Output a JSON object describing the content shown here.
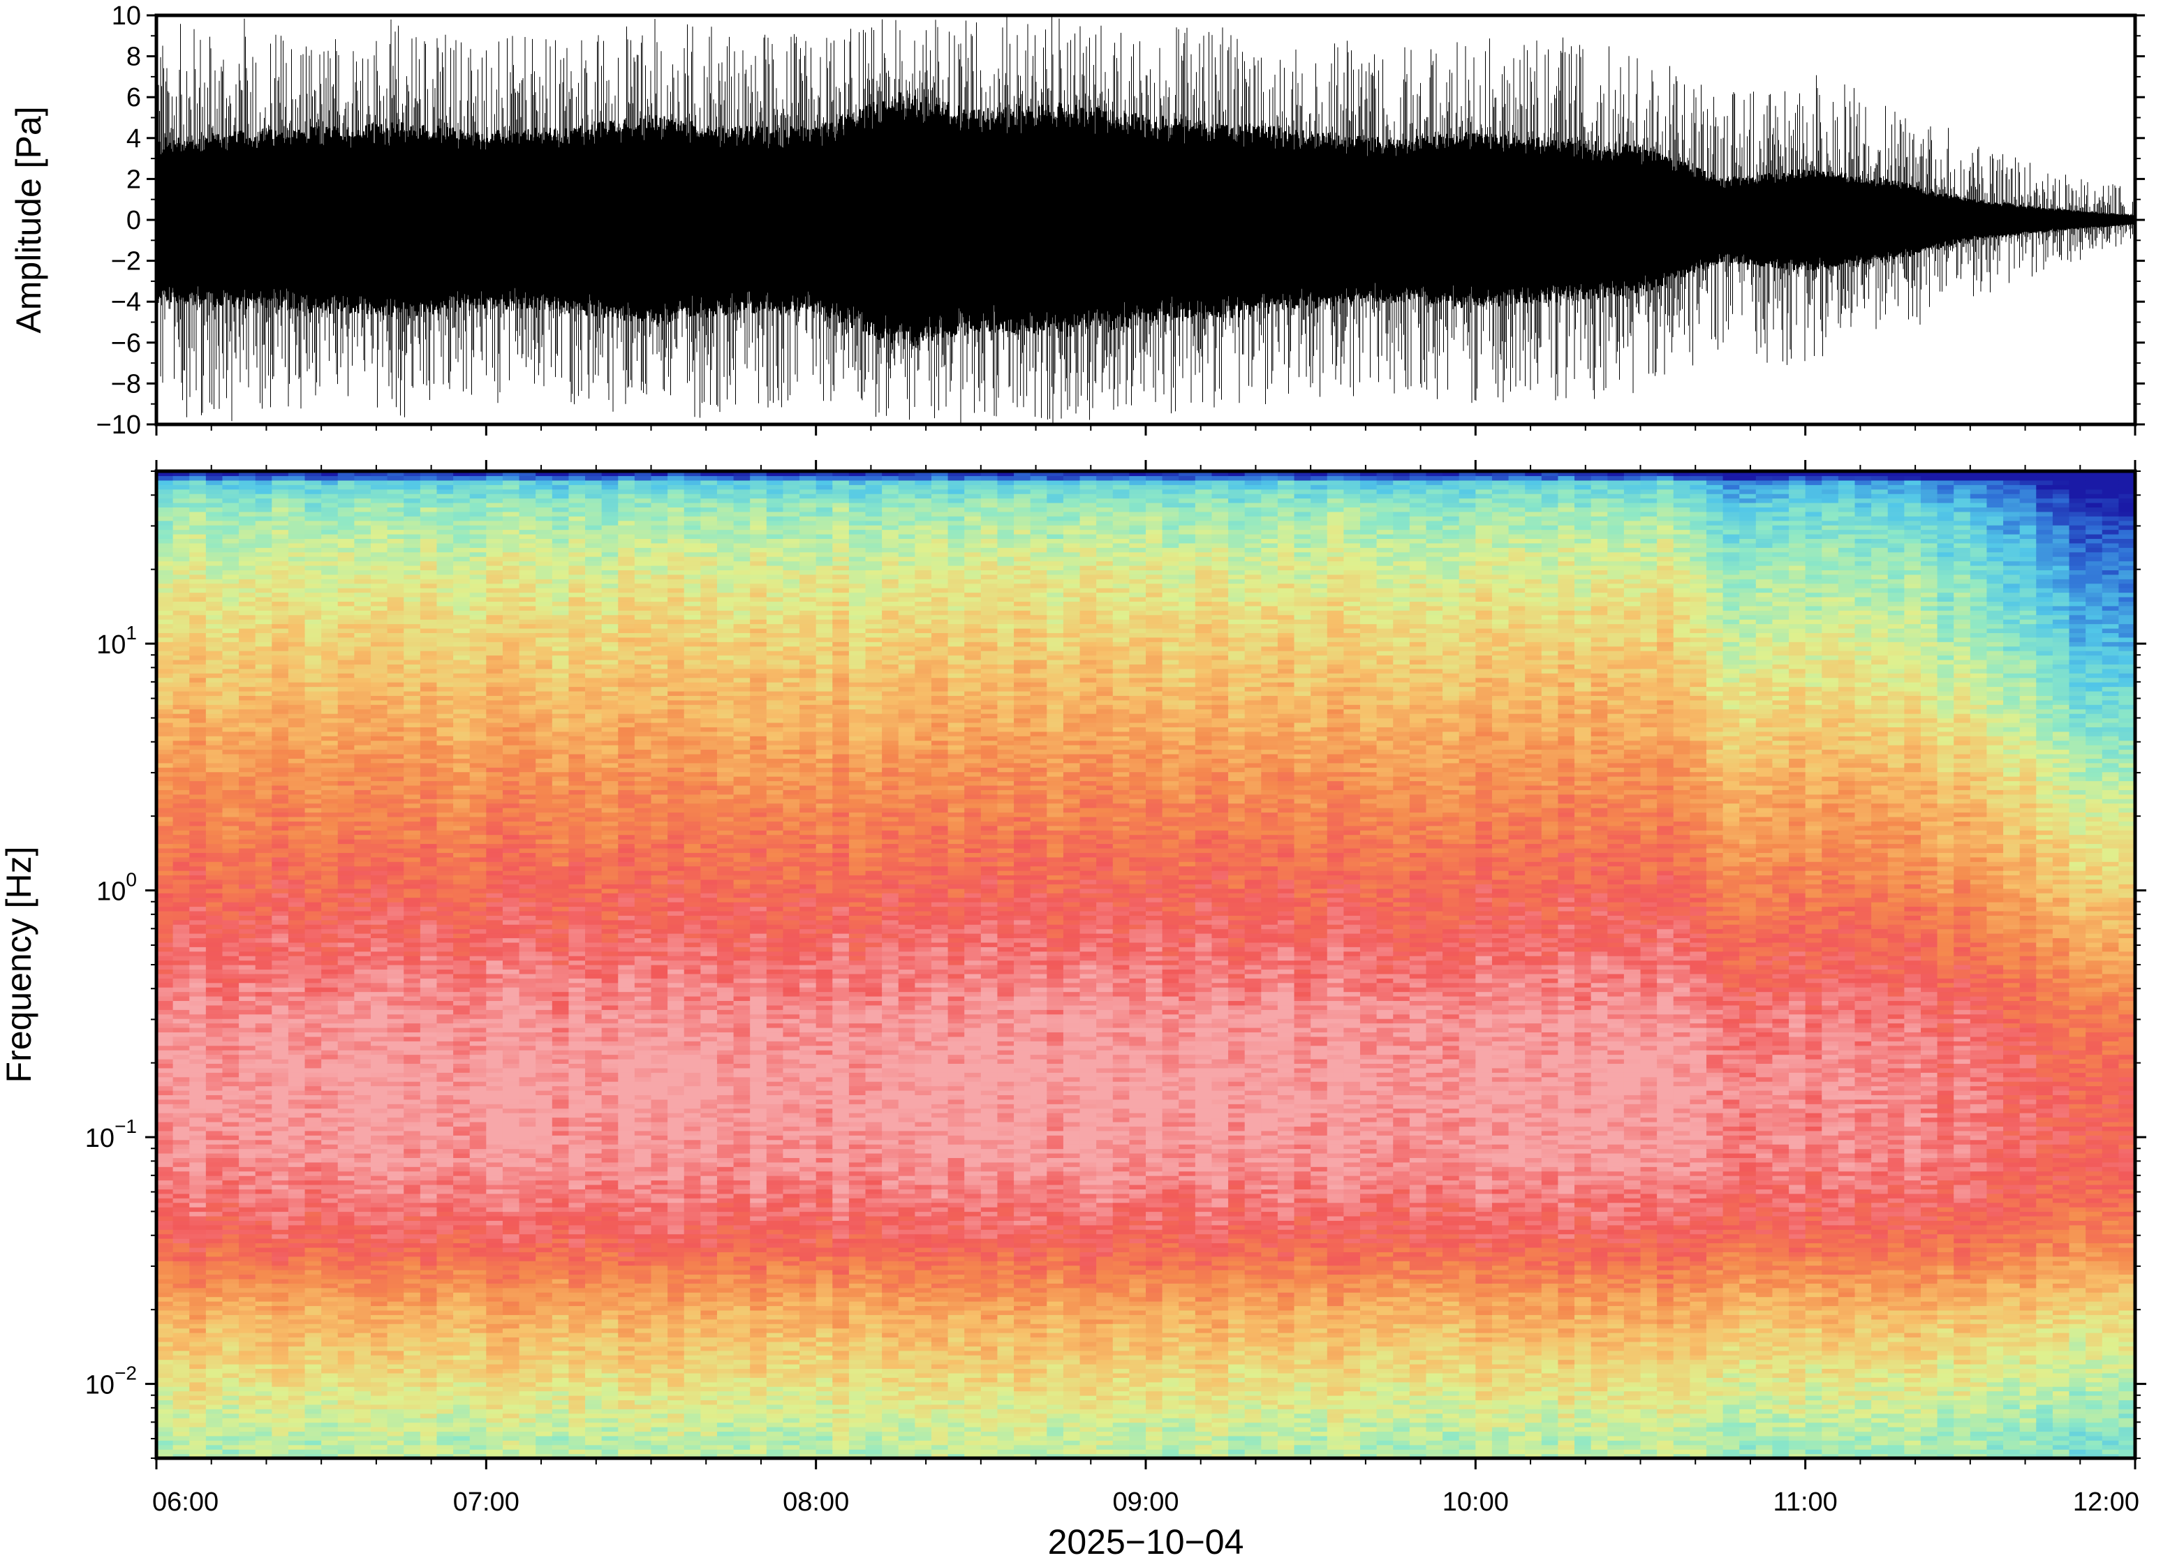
{
  "chart_data": [
    {
      "type": "line",
      "panel": "waveform",
      "ylabel": "Amplitude [Pa]",
      "ylim": [
        -10,
        10
      ],
      "yticks": [
        -10,
        -8,
        -6,
        -4,
        -2,
        0,
        2,
        4,
        6,
        8,
        10
      ],
      "ytick_labels": [
        "−10",
        "−8",
        "−6",
        "−4",
        "−2",
        "0",
        "2",
        "4",
        "6",
        "8",
        "10"
      ],
      "xlim": [
        "06:00",
        "12:00"
      ],
      "color": "#000000",
      "envelope": {
        "time_h": [
          6.0,
          6.25,
          6.5,
          6.75,
          7.0,
          7.25,
          7.5,
          7.75,
          8.0,
          8.25,
          8.5,
          8.75,
          9.0,
          9.25,
          9.5,
          9.75,
          10.0,
          10.25,
          10.5,
          10.75,
          11.0,
          11.25,
          11.5,
          11.75,
          12.0
        ],
        "core_amplitude": [
          3.5,
          3.8,
          4.0,
          4.2,
          3.8,
          4.0,
          4.5,
          4.0,
          4.0,
          5.5,
          4.8,
          5.0,
          4.5,
          4.2,
          3.8,
          3.5,
          3.8,
          3.5,
          3.2,
          1.8,
          2.2,
          1.8,
          0.9,
          0.5,
          0.2
        ],
        "peak_amplitude": [
          9.5,
          10.0,
          9.0,
          10.0,
          9.0,
          9.0,
          10.0,
          9.5,
          9.0,
          10.0,
          10.0,
          10.0,
          9.5,
          9.5,
          9.0,
          8.5,
          9.0,
          9.0,
          8.5,
          6.5,
          7.5,
          6.0,
          4.0,
          2.5,
          1.5
        ]
      }
    },
    {
      "type": "heatmap",
      "panel": "spectrogram",
      "ylabel": "Frequency [Hz]",
      "yscale": "log",
      "ylim": [
        0.005,
        50
      ],
      "yticks": [
        0.01,
        0.1,
        1,
        10
      ],
      "ytick_labels": [
        {
          "base": "10",
          "exp": "−2"
        },
        {
          "base": "10",
          "exp": "−1"
        },
        {
          "base": "10",
          "exp": "0"
        },
        {
          "base": "10",
          "exp": "1"
        }
      ],
      "xlabel": "2025−10−04",
      "xlim": [
        "06:00",
        "12:00"
      ],
      "xticks": [
        "06:00",
        "07:00",
        "08:00",
        "09:00",
        "10:00",
        "11:00",
        "12:00"
      ],
      "colormap": [
        "#1a1aa6",
        "#2f6fd6",
        "#52c7e8",
        "#8ee8c6",
        "#dff08e",
        "#f7c06a",
        "#f58a4e",
        "#f25a5a",
        "#f7a7a9"
      ],
      "band_frequency_hz": [
        0.006,
        0.011,
        0.02,
        0.04,
        0.08,
        0.15,
        0.3,
        0.6,
        1.2,
        2.5,
        5,
        10,
        20,
        35,
        45,
        48
      ],
      "band_level_index": [
        3.6,
        4.5,
        5.4,
        7.0,
        7.8,
        8.0,
        7.8,
        7.2,
        6.6,
        6.0,
        5.3,
        4.7,
        4.0,
        3.2,
        2.3,
        0.4
      ],
      "time_h": [
        6.0,
        10.6,
        10.75,
        11.0,
        11.3,
        11.6,
        11.85,
        12.0
      ],
      "time_level_shift": [
        0,
        0,
        -0.9,
        -0.6,
        -0.8,
        -1.6,
        -2.8,
        -3.0
      ]
    }
  ]
}
